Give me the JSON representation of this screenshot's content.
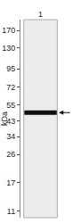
{
  "chart_data": {
    "type": "gel",
    "categories": [
      "1"
    ],
    "values": [
      49
    ],
    "ylabel": "kDa",
    "log": "y",
    "ylim": [
      10,
      200
    ],
    "yticks": [
      170,
      130,
      95,
      72,
      55,
      43,
      34,
      26,
      17,
      11
    ],
    "color": "#111111"
  }
}
